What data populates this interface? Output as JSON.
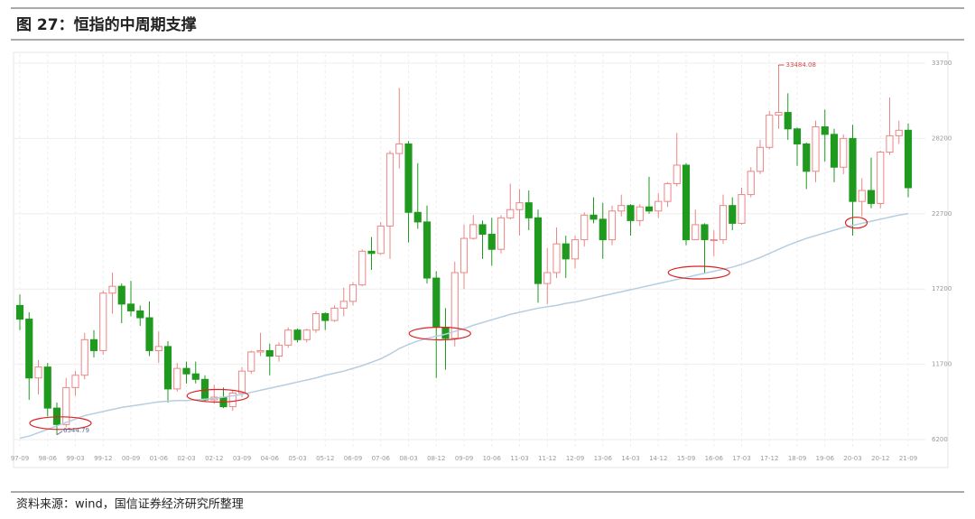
{
  "title": "图 27：恒指的中周期支撑",
  "source": "资料来源：wind，国信证券经济研究所整理",
  "chart_data": {
    "type": "candlestick",
    "categories": [
      "97-09",
      null,
      null,
      "98-06",
      null,
      null,
      "99-03",
      null,
      null,
      "99-12",
      null,
      null,
      "00-09",
      null,
      null,
      "01-06",
      null,
      null,
      "02-03",
      null,
      null,
      "02-12",
      null,
      null,
      "03-09",
      null,
      null,
      "04-06",
      null,
      null,
      "05-03",
      null,
      null,
      "05-12",
      null,
      null,
      "06-09",
      null,
      null,
      "07-06",
      null,
      null,
      "08-03",
      null,
      null,
      "08-12",
      null,
      null,
      "09-09",
      null,
      null,
      "10-06",
      null,
      null,
      "11-03",
      null,
      null,
      "11-12",
      null,
      null,
      "12-09",
      null,
      null,
      "13-06",
      null,
      null,
      "14-03",
      null,
      null,
      "14-12",
      null,
      null,
      "15-09",
      null,
      null,
      "16-06",
      null,
      null,
      "17-03",
      null,
      null,
      "17-12",
      null,
      null,
      "18-09",
      null,
      null,
      "19-06",
      null,
      null,
      "20-03",
      null,
      null,
      "20-12",
      null,
      null,
      "21-09"
    ],
    "open": [
      16000,
      15000,
      10700,
      11500,
      8500,
      7300,
      10000,
      10900,
      13500,
      12700,
      16900,
      17400,
      16100,
      15600,
      15100,
      12700,
      13000,
      9900,
      11400,
      11000,
      10600,
      9100,
      9300,
      8600,
      9600,
      11200,
      12600,
      12700,
      12300,
      13100,
      14200,
      13500,
      14200,
      15400,
      14900,
      15800,
      16300,
      17500,
      19960,
      19800,
      21800,
      27100,
      27800,
      22800,
      22100,
      18000,
      14400,
      13600,
      18400,
      20900,
      21900,
      21200,
      20100,
      22400,
      23000,
      23500,
      22400,
      17600,
      18400,
      20500,
      19400,
      20800,
      22600,
      22300,
      20800,
      22900,
      23300,
      22200,
      23200,
      22900,
      23600,
      24900,
      26250,
      20800,
      21900,
      20800,
      20800,
      23300,
      22000,
      24100,
      25800,
      27550,
      29900,
      30100,
      28900,
      27800,
      25800,
      29050,
      28500,
      26100,
      28200,
      23600,
      24400,
      23450,
      27200,
      28400,
      28800
    ],
    "high": [
      16800,
      15500,
      12000,
      11800,
      8900,
      10700,
      11200,
      14000,
      14200,
      17100,
      18400,
      17600,
      17800,
      16000,
      16300,
      14100,
      13400,
      11800,
      11900,
      11900,
      10900,
      10200,
      10000,
      9800,
      11500,
      12700,
      14000,
      13200,
      13300,
      14400,
      14300,
      14300,
      15600,
      15500,
      16000,
      17300,
      17700,
      20100,
      21000,
      22100,
      27300,
      31900,
      28000,
      26400,
      23300,
      18500,
      15800,
      19200,
      21900,
      22600,
      22200,
      22400,
      22600,
      24900,
      24500,
      24400,
      23000,
      20200,
      21700,
      21100,
      21100,
      22800,
      23900,
      23500,
      23300,
      24100,
      23400,
      23400,
      25400,
      24200,
      25000,
      28600,
      26400,
      23000,
      22000,
      21500,
      24100,
      23900,
      24600,
      26100,
      28100,
      30200,
      33484.08,
      31500,
      29000,
      27900,
      29500,
      30300,
      28900,
      28500,
      29200,
      25300,
      26800,
      27300,
      31200,
      29500,
      29300
    ],
    "low": [
      14200,
      9100,
      9500,
      7900,
      6544.79,
      7100,
      9400,
      10600,
      12200,
      12400,
      15400,
      14700,
      15200,
      14500,
      12300,
      11800,
      8900,
      9700,
      10300,
      10300,
      9000,
      8800,
      8500,
      8300,
      9300,
      11000,
      12300,
      10900,
      11900,
      12900,
      13300,
      13300,
      14000,
      14200,
      14800,
      15200,
      16000,
      17400,
      18600,
      19700,
      19400,
      26000,
      20600,
      21600,
      17600,
      10700,
      11300,
      13000,
      17200,
      20800,
      19400,
      18900,
      19800,
      22300,
      21100,
      21500,
      16200,
      16100,
      18000,
      18000,
      18700,
      20300,
      22000,
      19400,
      20400,
      22500,
      21100,
      21800,
      22700,
      22400,
      23200,
      24700,
      20400,
      20800,
      18300,
      19600,
      20500,
      21500,
      21900,
      23900,
      25600,
      27400,
      28900,
      28100,
      26200,
      24500,
      25000,
      26500,
      25000,
      25600,
      21100,
      22500,
      23100,
      23100,
      27000,
      27800,
      23900
    ],
    "close": [
      15000,
      10700,
      11500,
      8500,
      7300,
      10000,
      10900,
      13500,
      12700,
      16900,
      17400,
      16100,
      15600,
      15100,
      12700,
      13000,
      9900,
      11400,
      11000,
      10600,
      9100,
      9300,
      8600,
      9600,
      11200,
      12600,
      12700,
      12300,
      13100,
      14200,
      13500,
      14200,
      15400,
      14900,
      15800,
      16300,
      17500,
      19960,
      19800,
      21800,
      27100,
      27800,
      22800,
      22100,
      18000,
      14400,
      13600,
      18400,
      20900,
      21900,
      21200,
      20100,
      22400,
      23000,
      23500,
      22400,
      17600,
      18400,
      20500,
      19400,
      20800,
      22600,
      22300,
      20800,
      22900,
      23300,
      22200,
      23200,
      22900,
      23600,
      24900,
      26250,
      20800,
      21900,
      20800,
      20800,
      23300,
      22000,
      24100,
      25800,
      27550,
      29900,
      30100,
      28900,
      27800,
      25800,
      29050,
      28500,
      26100,
      28200,
      23600,
      24400,
      23450,
      27200,
      28400,
      28800,
      24600
    ],
    "ma": [
      6300,
      6450,
      6700,
      6950,
      7200,
      7450,
      7700,
      7950,
      8100,
      8250,
      8400,
      8550,
      8650,
      8750,
      8850,
      8950,
      9000,
      9050,
      9050,
      9100,
      9150,
      9200,
      9300,
      9400,
      9500,
      9650,
      9800,
      9950,
      10100,
      10250,
      10400,
      10550,
      10700,
      10900,
      11050,
      11200,
      11400,
      11600,
      11850,
      12100,
      12450,
      12850,
      13150,
      13400,
      13600,
      13750,
      13900,
      14100,
      14300,
      14550,
      14750,
      14950,
      15150,
      15350,
      15500,
      15650,
      15800,
      15900,
      16000,
      16150,
      16250,
      16400,
      16550,
      16700,
      16850,
      17000,
      17150,
      17300,
      17450,
      17600,
      17750,
      17900,
      18050,
      18200,
      18350,
      18500,
      18650,
      18800,
      19000,
      19250,
      19500,
      19800,
      20100,
      20400,
      20650,
      20900,
      21100,
      21300,
      21500,
      21700,
      21850,
      22000,
      22150,
      22300,
      22450,
      22600,
      22700
    ],
    "up_color": "#ee8585",
    "down_color": "#1f9a1f",
    "ma_color": "#b7cde0",
    "ylim": [
      6200,
      33700
    ],
    "yticks": [
      6200,
      11700,
      17200,
      22700,
      28200,
      33700
    ],
    "grid": true
  }
}
